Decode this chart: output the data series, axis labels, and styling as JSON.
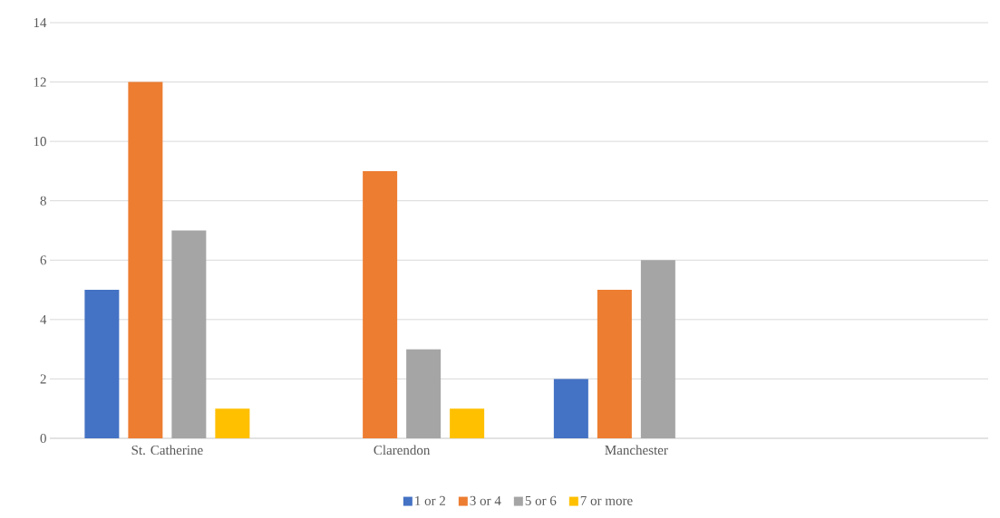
{
  "chart_data": {
    "type": "bar",
    "categories": [
      "St. Catherine",
      "Clarendon",
      "Manchester",
      null
    ],
    "series": [
      {
        "name": "1 or 2",
        "color": "#4472c4",
        "values": [
          5,
          0,
          2,
          null
        ]
      },
      {
        "name": "3 or 4",
        "color": "#ed7d31",
        "values": [
          12,
          9,
          5,
          null
        ]
      },
      {
        "name": "5 or 6",
        "color": "#a5a5a5",
        "values": [
          7,
          3,
          6,
          null
        ]
      },
      {
        "name": "7 or more",
        "color": "#ffc000",
        "values": [
          1,
          1,
          0,
          null
        ]
      }
    ],
    "ylim": [
      0,
      14
    ],
    "yticks": [
      0,
      2,
      4,
      6,
      8,
      10,
      12,
      14
    ],
    "grid": "y",
    "legend": "bottom"
  }
}
